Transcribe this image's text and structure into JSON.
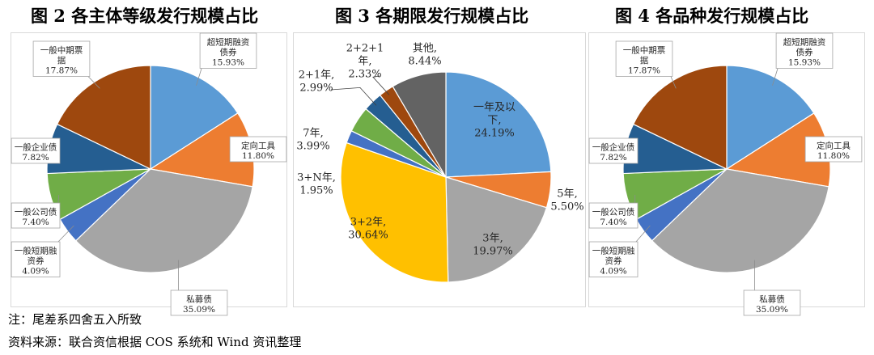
{
  "titles": {
    "fig2": "图 2   各主体等级发行规模占比",
    "fig3": "图 3   各期限发行规模占比",
    "fig4": "图 4 各品种发行规模占比"
  },
  "footer": {
    "note": "注：尾差系四舍五入所致",
    "source": "资料来源：联合资信根据 COS 系统和 Wind 资讯整理"
  },
  "chart_data": [
    {
      "type": "pie",
      "title": "图 2   各主体等级发行规模占比",
      "slices": [
        {
          "label": "超短期融资债券",
          "value": 15.93,
          "display": "15.93%",
          "color": "#5B9BD5"
        },
        {
          "label": "定向工具",
          "value": 11.8,
          "display": "11.80%",
          "color": "#ED7D31"
        },
        {
          "label": "私募债",
          "value": 35.09,
          "display": "35.09%",
          "color": "#A5A5A5"
        },
        {
          "label": "一般短期融资券",
          "value": 4.09,
          "display": "4.09%",
          "color": "#4472C4"
        },
        {
          "label": "一般公司债",
          "value": 7.4,
          "display": "7.40%",
          "color": "#70AD47"
        },
        {
          "label": "一般企业债",
          "value": 7.82,
          "display": "7.82%",
          "color": "#255E91"
        },
        {
          "label": "一般中期票据",
          "value": 17.87,
          "display": "17.87%",
          "color": "#9E480E"
        }
      ]
    },
    {
      "type": "pie",
      "title": "图 3   各期限发行规模占比",
      "slices": [
        {
          "label": "一年及以下",
          "value": 24.19,
          "display": "24.19%",
          "color": "#5B9BD5"
        },
        {
          "label": "5年",
          "value": 5.5,
          "display": "5.50%",
          "color": "#ED7D31"
        },
        {
          "label": "3年",
          "value": 19.97,
          "display": "19.97%",
          "color": "#A5A5A5"
        },
        {
          "label": "3+2年",
          "value": 30.64,
          "display": "30.64%",
          "color": "#FFC000"
        },
        {
          "label": "3+N年",
          "value": 1.95,
          "display": "1.95%",
          "color": "#4472C4"
        },
        {
          "label": "7年",
          "value": 3.99,
          "display": "3.99%",
          "color": "#70AD47"
        },
        {
          "label": "2+1年",
          "value": 2.99,
          "display": "2.99%",
          "color": "#255E91"
        },
        {
          "label": "2+2+1年",
          "value": 2.33,
          "display": "2.33%",
          "color": "#9E480E"
        },
        {
          "label": "其他",
          "value": 8.44,
          "display": "8.44%",
          "color": "#636363"
        }
      ]
    },
    {
      "type": "pie",
      "title": "图 4 各品种发行规模占比",
      "slices": [
        {
          "label": "超短期融资债券",
          "value": 15.93,
          "display": "15.93%",
          "color": "#5B9BD5"
        },
        {
          "label": "定向工具",
          "value": 11.8,
          "display": "11.80%",
          "color": "#ED7D31"
        },
        {
          "label": "私募债",
          "value": 35.09,
          "display": "35.09%",
          "color": "#A5A5A5"
        },
        {
          "label": "一般短期融资券",
          "value": 4.09,
          "display": "4.09%",
          "color": "#4472C4"
        },
        {
          "label": "一般公司债",
          "value": 7.4,
          "display": "7.40%",
          "color": "#70AD47"
        },
        {
          "label": "一般企业债",
          "value": 7.82,
          "display": "7.82%",
          "color": "#255E91"
        },
        {
          "label": "一般中期票据",
          "value": 17.87,
          "display": "17.87%",
          "color": "#9E480E"
        }
      ]
    }
  ],
  "label_text": {
    "c0": [
      [
        "超短期融资",
        "债券",
        "15.93%"
      ],
      [
        "定向工具",
        "11.80%"
      ],
      [
        "私募债",
        "35.09%"
      ],
      [
        "一般短期融",
        "资券",
        "4.09%"
      ],
      [
        "一般公司债",
        "7.40%"
      ],
      [
        "一般企业债",
        "7.82%"
      ],
      [
        "一般中期票",
        "据",
        "17.87%"
      ]
    ],
    "c1": [
      [
        "一年及以",
        "下,",
        "24.19%"
      ],
      [
        "5年,",
        "5.50%"
      ],
      [
        "3年,",
        "19.97%"
      ],
      [
        "3+2年,",
        "30.64%"
      ],
      [
        "3+N年,",
        "1.95%"
      ],
      [
        "7年,",
        "3.99%"
      ],
      [
        "2+1年,",
        "2.99%"
      ],
      [
        "2+2+1",
        "年,",
        "2.33%"
      ],
      [
        "其他,",
        "8.44%"
      ]
    ],
    "c2": [
      [
        "超短期融资",
        "债券",
        "15.93%"
      ],
      [
        "定向工具",
        "11.80%"
      ],
      [
        "私募债",
        "35.09%"
      ],
      [
        "一般短期融",
        "资券",
        "4.09%"
      ],
      [
        "一般公司债",
        "7.40%"
      ],
      [
        "一般企业债",
        "7.82%"
      ],
      [
        "一般中期票",
        "据",
        "17.87%"
      ]
    ]
  }
}
